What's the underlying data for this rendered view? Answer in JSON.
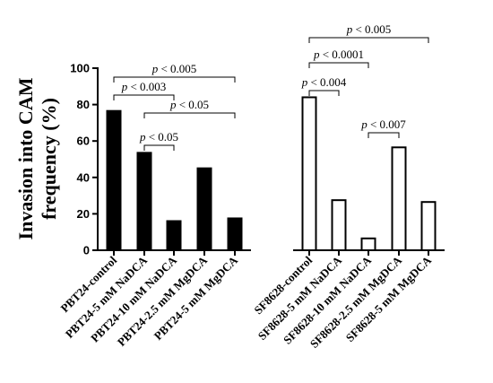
{
  "chart_data": {
    "type": "bar",
    "title": "",
    "xlabel": "",
    "ylabel_lines": [
      "Invasion into CAM",
      "frequency (%)"
    ],
    "ylim": [
      0,
      100
    ],
    "yticks": [
      0,
      20,
      40,
      60,
      80,
      100
    ],
    "colors": {
      "filled": "#000000",
      "open": "#ffffff",
      "outline": "#000000"
    },
    "groups": [
      {
        "fill": "filled",
        "categories": [
          "PBT24-control",
          "PBT24-5 mM NaDCA",
          "PBT24-10 mM NaDCA",
          "PBT24-2.5 mM MgDCA",
          "PBT24-5 mM MgDCA"
        ],
        "values": [
          77,
          54,
          16.5,
          45.5,
          18
        ],
        "significance": [
          {
            "from": 0,
            "to": 4,
            "label": "p < 0.005"
          },
          {
            "from": 0,
            "to": 2,
            "label": "p < 0.003"
          },
          {
            "from": 1,
            "to": 4,
            "label": "p < 0.05"
          },
          {
            "from": 1,
            "to": 2,
            "label": "p < 0.05"
          }
        ]
      },
      {
        "fill": "open",
        "categories": [
          "SF8628-control",
          "SF8628-5 mM NaDCA",
          "SF8628-10 mM NaDCA",
          "SF8628-2.5 mM MgDCA",
          "SF8628-5 mM MgDCA"
        ],
        "values": [
          84.5,
          28,
          7,
          57,
          27
        ],
        "significance": [
          {
            "from": 0,
            "to": 4,
            "label": "p < 0.005"
          },
          {
            "from": 0,
            "to": 2,
            "label": "p < 0.0001"
          },
          {
            "from": 0,
            "to": 1,
            "label": "p < 0.004"
          },
          {
            "from": 2,
            "to": 3,
            "label": "p < 0.007"
          }
        ]
      }
    ]
  }
}
